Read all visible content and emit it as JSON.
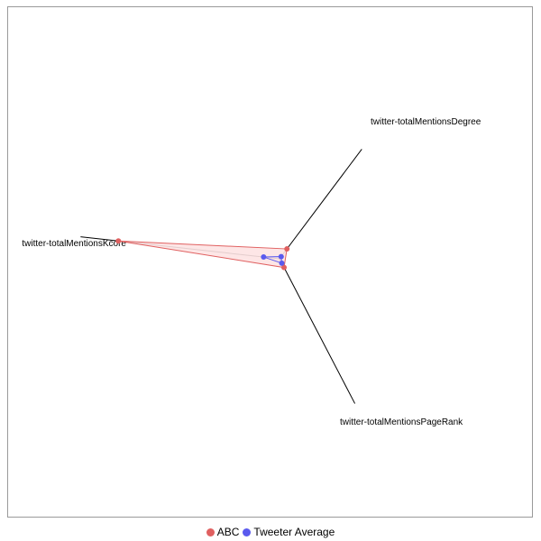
{
  "chart_data": {
    "type": "radar",
    "axes": [
      "twitter-totalMentionsDegree",
      "twitter-totalMentionsPageRank",
      "twitter-totalMentionsKcore"
    ],
    "value_range": [
      0,
      1
    ],
    "series": [
      {
        "name": "ABC",
        "color": "#e06060",
        "fill": "#fde3e3",
        "values": [
          0.09,
          0.06,
          0.81
        ]
      },
      {
        "name": "Tweeter Average",
        "color": "#5a5aee",
        "values": [
          0.02,
          0.03,
          0.08
        ]
      }
    ],
    "legend_position": "bottom",
    "grid": false
  }
}
